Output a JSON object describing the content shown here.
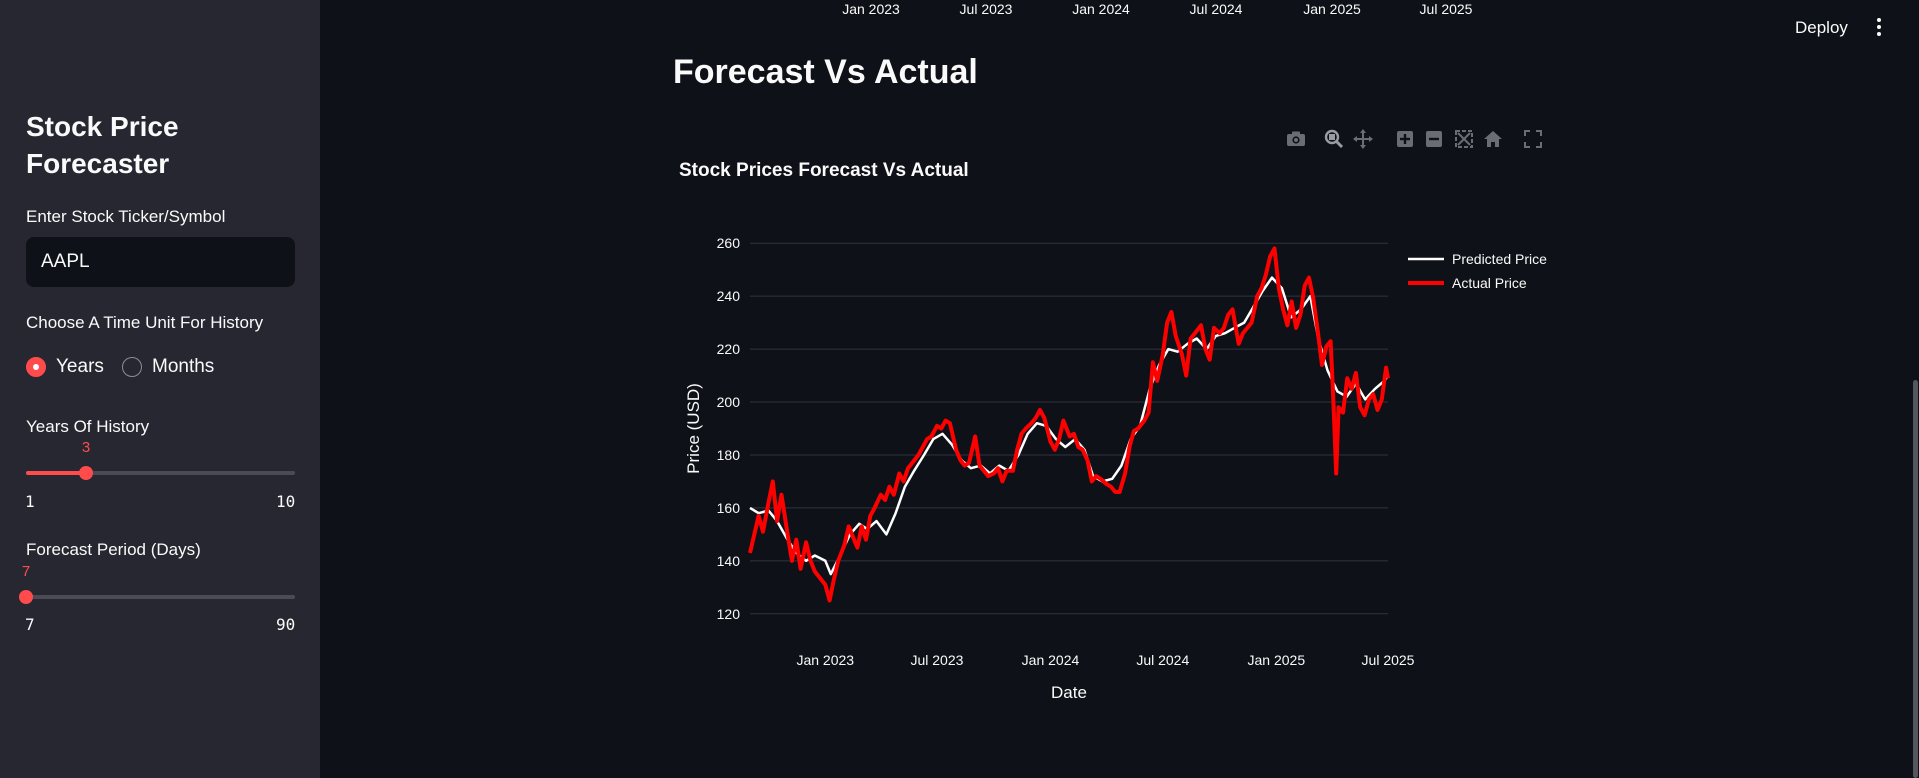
{
  "sidebar": {
    "title": "Stock Price Forecaster",
    "ticker_label": "Enter Stock Ticker/Symbol",
    "ticker_value": "AAPL",
    "time_unit_label": "Choose A Time Unit For History",
    "options": [
      "Years",
      "Months"
    ],
    "selected_option": "Years",
    "history_label": "Years Of History",
    "history": {
      "value": "3",
      "min": "1",
      "max": "10"
    },
    "forecast_label": "Forecast Period (Days)",
    "forecast": {
      "value": "7",
      "min": "7",
      "max": "90"
    }
  },
  "header": {
    "deploy_label": "Deploy"
  },
  "top_ticks": [
    "Jan 2023",
    "Jul 2023",
    "Jan 2024",
    "Jul 2024",
    "Jan 2025",
    "Jul 2025"
  ],
  "main": {
    "section_title": "Forecast Vs Actual"
  },
  "modebar": [
    "camera-icon",
    "zoom-icon",
    "pan-icon",
    "zoom-in-icon",
    "zoom-out-icon",
    "autoscale-icon",
    "reset-axes-icon",
    "fullscreen-icon"
  ],
  "colors": {
    "accent": "#ff4b4b",
    "predicted": "#ffffff",
    "actual": "#ff0000",
    "background": "#0e1117",
    "sidebar": "#262730"
  },
  "chart_data": {
    "type": "line",
    "title": "Stock Prices Forecast Vs Actual",
    "xlabel": "Date",
    "ylabel": "Price (USD)",
    "x_ticks": [
      "Jan 2023",
      "Jul 2023",
      "Jan 2024",
      "Jul 2024",
      "Jan 2025",
      "Jul 2025"
    ],
    "y_ticks": [
      120,
      140,
      160,
      180,
      200,
      220,
      240,
      260
    ],
    "xlim": [
      "2022-09-01",
      "2025-07-01"
    ],
    "ylim": [
      115,
      265
    ],
    "grid": true,
    "legend": "right",
    "series": [
      {
        "name": "Predicted Price",
        "color": "#ffffff",
        "points": [
          [
            "2022-09-01",
            160
          ],
          [
            "2022-09-15",
            158
          ],
          [
            "2022-10-01",
            159
          ],
          [
            "2022-10-15",
            155
          ],
          [
            "2022-11-01",
            148
          ],
          [
            "2022-11-15",
            143
          ],
          [
            "2022-12-01",
            140
          ],
          [
            "2022-12-15",
            142
          ],
          [
            "2023-01-01",
            140
          ],
          [
            "2023-01-10",
            135
          ],
          [
            "2023-01-25",
            142
          ],
          [
            "2023-02-10",
            150
          ],
          [
            "2023-02-25",
            154
          ],
          [
            "2023-03-10",
            152
          ],
          [
            "2023-03-25",
            155
          ],
          [
            "2023-04-10",
            150
          ],
          [
            "2023-04-25",
            158
          ],
          [
            "2023-05-10",
            168
          ],
          [
            "2023-05-25",
            174
          ],
          [
            "2023-06-10",
            180
          ],
          [
            "2023-06-25",
            186
          ],
          [
            "2023-07-10",
            188
          ],
          [
            "2023-07-25",
            184
          ],
          [
            "2023-08-10",
            178
          ],
          [
            "2023-08-25",
            175
          ],
          [
            "2023-09-10",
            176
          ],
          [
            "2023-09-25",
            173
          ],
          [
            "2023-10-10",
            176
          ],
          [
            "2023-10-25",
            174
          ],
          [
            "2023-11-10",
            180
          ],
          [
            "2023-11-25",
            188
          ],
          [
            "2023-12-10",
            192
          ],
          [
            "2023-12-25",
            191
          ],
          [
            "2024-01-10",
            186
          ],
          [
            "2024-01-25",
            183
          ],
          [
            "2024-02-10",
            186
          ],
          [
            "2024-02-25",
            182
          ],
          [
            "2024-03-10",
            172
          ],
          [
            "2024-03-25",
            170
          ],
          [
            "2024-04-10",
            171
          ],
          [
            "2024-04-25",
            176
          ],
          [
            "2024-05-10",
            186
          ],
          [
            "2024-05-25",
            191
          ],
          [
            "2024-06-10",
            205
          ],
          [
            "2024-06-25",
            214
          ],
          [
            "2024-07-10",
            220
          ],
          [
            "2024-07-25",
            219
          ],
          [
            "2024-08-10",
            222
          ],
          [
            "2024-08-25",
            224
          ],
          [
            "2024-09-10",
            220
          ],
          [
            "2024-09-25",
            225
          ],
          [
            "2024-10-10",
            226
          ],
          [
            "2024-10-25",
            228
          ],
          [
            "2024-11-10",
            230
          ],
          [
            "2024-11-25",
            236
          ],
          [
            "2024-12-10",
            242
          ],
          [
            "2024-12-25",
            247
          ],
          [
            "2025-01-10",
            243
          ],
          [
            "2025-01-25",
            232
          ],
          [
            "2025-02-10",
            235
          ],
          [
            "2025-02-25",
            240
          ],
          [
            "2025-03-10",
            224
          ],
          [
            "2025-03-25",
            212
          ],
          [
            "2025-04-10",
            204
          ],
          [
            "2025-04-25",
            202
          ],
          [
            "2025-05-10",
            207
          ],
          [
            "2025-05-25",
            201
          ],
          [
            "2025-06-10",
            205
          ],
          [
            "2025-06-25",
            208
          ],
          [
            "2025-07-01",
            210
          ]
        ]
      },
      {
        "name": "Actual Price",
        "color": "#ff0000",
        "points": [
          [
            "2022-09-01",
            143
          ],
          [
            "2022-09-08",
            150
          ],
          [
            "2022-09-15",
            157
          ],
          [
            "2022-09-22",
            151
          ],
          [
            "2022-10-01",
            162
          ],
          [
            "2022-10-08",
            170
          ],
          [
            "2022-10-15",
            155
          ],
          [
            "2022-10-22",
            165
          ],
          [
            "2022-11-01",
            150
          ],
          [
            "2022-11-08",
            140
          ],
          [
            "2022-11-15",
            148
          ],
          [
            "2022-11-22",
            137
          ],
          [
            "2022-12-01",
            147
          ],
          [
            "2022-12-08",
            140
          ],
          [
            "2022-12-15",
            136
          ],
          [
            "2023-01-01",
            131
          ],
          [
            "2023-01-08",
            125
          ],
          [
            "2023-01-15",
            133
          ],
          [
            "2023-01-22",
            140
          ],
          [
            "2023-02-01",
            146
          ],
          [
            "2023-02-08",
            153
          ],
          [
            "2023-02-15",
            149
          ],
          [
            "2023-02-22",
            145
          ],
          [
            "2023-03-01",
            153
          ],
          [
            "2023-03-08",
            148
          ],
          [
            "2023-03-15",
            157
          ],
          [
            "2023-03-22",
            160
          ],
          [
            "2023-04-01",
            165
          ],
          [
            "2023-04-08",
            163
          ],
          [
            "2023-04-15",
            168
          ],
          [
            "2023-04-22",
            165
          ],
          [
            "2023-05-01",
            173
          ],
          [
            "2023-05-08",
            170
          ],
          [
            "2023-05-15",
            175
          ],
          [
            "2023-05-22",
            177
          ],
          [
            "2023-06-01",
            180
          ],
          [
            "2023-06-08",
            183
          ],
          [
            "2023-06-15",
            186
          ],
          [
            "2023-06-22",
            187
          ],
          [
            "2023-07-01",
            191
          ],
          [
            "2023-07-08",
            190
          ],
          [
            "2023-07-15",
            193
          ],
          [
            "2023-07-22",
            192
          ],
          [
            "2023-08-01",
            182
          ],
          [
            "2023-08-08",
            178
          ],
          [
            "2023-08-15",
            176
          ],
          [
            "2023-08-22",
            177
          ],
          [
            "2023-09-01",
            187
          ],
          [
            "2023-09-08",
            176
          ],
          [
            "2023-09-15",
            174
          ],
          [
            "2023-09-22",
            172
          ],
          [
            "2023-10-01",
            173
          ],
          [
            "2023-10-08",
            175
          ],
          [
            "2023-10-15",
            170
          ],
          [
            "2023-10-22",
            174
          ],
          [
            "2023-11-01",
            174
          ],
          [
            "2023-11-08",
            182
          ],
          [
            "2023-11-15",
            188
          ],
          [
            "2023-11-22",
            190
          ],
          [
            "2023-12-01",
            192
          ],
          [
            "2023-12-08",
            194
          ],
          [
            "2023-12-15",
            197
          ],
          [
            "2023-12-22",
            194
          ],
          [
            "2024-01-01",
            185
          ],
          [
            "2024-01-08",
            182
          ],
          [
            "2024-01-15",
            186
          ],
          [
            "2024-01-22",
            193
          ],
          [
            "2024-02-01",
            187
          ],
          [
            "2024-02-08",
            188
          ],
          [
            "2024-02-15",
            183
          ],
          [
            "2024-02-22",
            182
          ],
          [
            "2024-03-01",
            178
          ],
          [
            "2024-03-08",
            170
          ],
          [
            "2024-03-15",
            172
          ],
          [
            "2024-03-22",
            171
          ],
          [
            "2024-04-01",
            169
          ],
          [
            "2024-04-08",
            168
          ],
          [
            "2024-04-15",
            166
          ],
          [
            "2024-04-22",
            166
          ],
          [
            "2024-05-01",
            173
          ],
          [
            "2024-05-08",
            183
          ],
          [
            "2024-05-15",
            189
          ],
          [
            "2024-05-22",
            190
          ],
          [
            "2024-06-01",
            193
          ],
          [
            "2024-06-08",
            196
          ],
          [
            "2024-06-15",
            215
          ],
          [
            "2024-06-22",
            208
          ],
          [
            "2024-07-01",
            218
          ],
          [
            "2024-07-08",
            230
          ],
          [
            "2024-07-15",
            234
          ],
          [
            "2024-07-22",
            225
          ],
          [
            "2024-08-01",
            218
          ],
          [
            "2024-08-08",
            210
          ],
          [
            "2024-08-15",
            224
          ],
          [
            "2024-08-22",
            226
          ],
          [
            "2024-09-01",
            229
          ],
          [
            "2024-09-08",
            220
          ],
          [
            "2024-09-15",
            216
          ],
          [
            "2024-09-22",
            228
          ],
          [
            "2024-10-01",
            226
          ],
          [
            "2024-10-08",
            228
          ],
          [
            "2024-10-15",
            233
          ],
          [
            "2024-10-22",
            235
          ],
          [
            "2024-11-01",
            222
          ],
          [
            "2024-11-08",
            226
          ],
          [
            "2024-11-15",
            228
          ],
          [
            "2024-11-22",
            230
          ],
          [
            "2024-12-01",
            240
          ],
          [
            "2024-12-08",
            243
          ],
          [
            "2024-12-15",
            248
          ],
          [
            "2024-12-22",
            255
          ],
          [
            "2024-12-29",
            258
          ],
          [
            "2025-01-05",
            243
          ],
          [
            "2025-01-12",
            235
          ],
          [
            "2025-01-19",
            229
          ],
          [
            "2025-01-26",
            238
          ],
          [
            "2025-02-02",
            228
          ],
          [
            "2025-02-09",
            233
          ],
          [
            "2025-02-16",
            244
          ],
          [
            "2025-02-23",
            247
          ],
          [
            "2025-03-02",
            239
          ],
          [
            "2025-03-09",
            227
          ],
          [
            "2025-03-16",
            214
          ],
          [
            "2025-03-23",
            221
          ],
          [
            "2025-03-30",
            223
          ],
          [
            "2025-04-03",
            203
          ],
          [
            "2025-04-08",
            173
          ],
          [
            "2025-04-12",
            198
          ],
          [
            "2025-04-19",
            196
          ],
          [
            "2025-04-26",
            209
          ],
          [
            "2025-05-03",
            205
          ],
          [
            "2025-05-10",
            211
          ],
          [
            "2025-05-17",
            198
          ],
          [
            "2025-05-24",
            195
          ],
          [
            "2025-05-31",
            201
          ],
          [
            "2025-06-07",
            203
          ],
          [
            "2025-06-14",
            197
          ],
          [
            "2025-06-21",
            201
          ],
          [
            "2025-06-28",
            213
          ],
          [
            "2025-07-01",
            209
          ]
        ]
      }
    ]
  }
}
